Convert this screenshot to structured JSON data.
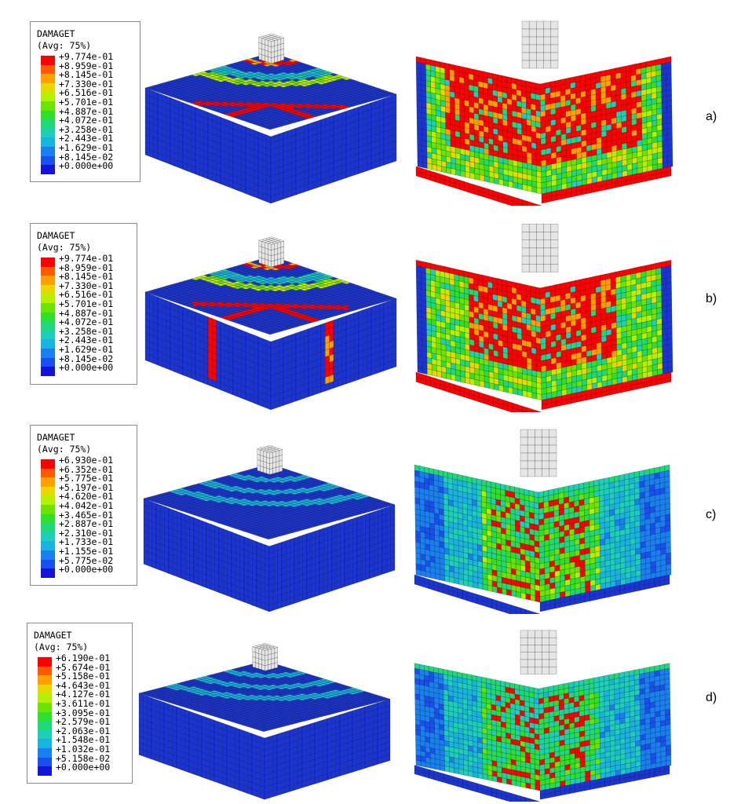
{
  "rows": [
    {
      "label": "a)",
      "legend": {
        "title": "DAMAGET",
        "subtitle": "(Avg: 75%)",
        "values": [
          "+9.774e-01",
          "+8.959e-01",
          "+8.145e-01",
          "+7.330e-01",
          "+6.516e-01",
          "+5.701e-01",
          "+4.887e-01",
          "+4.072e-01",
          "+3.258e-01",
          "+2.443e-01",
          "+1.629e-01",
          "+8.145e-02",
          "+0.000e+00"
        ]
      }
    },
    {
      "label": "b)",
      "legend": {
        "title": "DAMAGET",
        "subtitle": "(Avg: 75%)",
        "values": [
          "+9.774e-01",
          "+8.959e-01",
          "+8.145e-01",
          "+7.330e-01",
          "+6.516e-01",
          "+5.701e-01",
          "+4.887e-01",
          "+4.072e-01",
          "+3.258e-01",
          "+2.443e-01",
          "+1.629e-01",
          "+8.145e-02",
          "+0.000e+00"
        ]
      }
    },
    {
      "label": "c)",
      "legend": {
        "title": "DAMAGET",
        "subtitle": "(Avg: 75%)",
        "values": [
          "+6.930e-01",
          "+6.352e-01",
          "+5.775e-01",
          "+5.197e-01",
          "+4.620e-01",
          "+4.042e-01",
          "+3.465e-01",
          "+2.887e-01",
          "+2.310e-01",
          "+1.733e-01",
          "+1.155e-01",
          "+5.775e-02",
          "+0.000e+00"
        ]
      }
    },
    {
      "label": "d)",
      "legend": {
        "title": "DAMAGET",
        "subtitle": "(Avg: 75%)",
        "values": [
          "+6.190e-01",
          "+5.674e-01",
          "+5.158e-01",
          "+4.643e-01",
          "+4.127e-01",
          "+3.611e-01",
          "+3.095e-01",
          "+2.579e-01",
          "+2.063e-01",
          "+1.548e-01",
          "+1.032e-01",
          "+5.158e-02",
          "+0.000e+00"
        ]
      }
    }
  ],
  "colormap": [
    "#ff0000",
    "#ff5a00",
    "#ffa000",
    "#e8d800",
    "#b4f000",
    "#6ce400",
    "#2ee02a",
    "#1fd878",
    "#1ccfb8",
    "#18b4e0",
    "#1880f0",
    "#1850f0",
    "#1414d8"
  ],
  "mesh_base_color": "#1a34d6",
  "column_color": "#e6e6e6"
}
